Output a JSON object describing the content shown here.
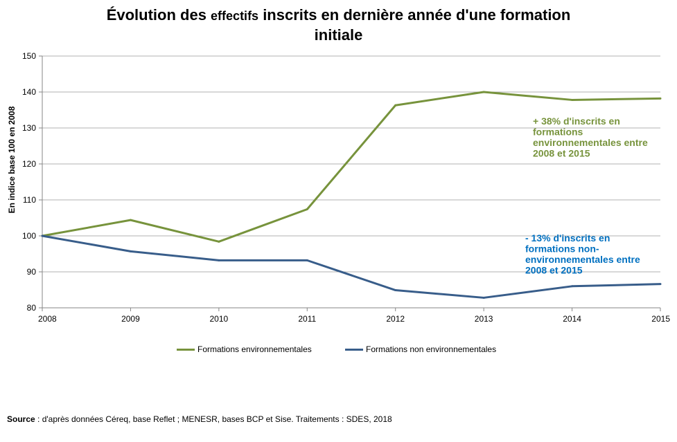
{
  "title": {
    "part1": "Évolution des ",
    "part2": "effectifs",
    "part3": " inscrits en dernière année d'une formation",
    "line2": "initiale"
  },
  "colors": {
    "environmental": "#77933C",
    "non_environmental": "#385D8A",
    "annotation_env": "#77933C",
    "annotation_non_env": "#0070C0",
    "grid": "#B0B0B0",
    "axis": "#868686"
  },
  "chart_data": {
    "type": "line",
    "x": [
      "2008",
      "2009",
      "2010",
      "2011",
      "2012",
      "2013",
      "2014",
      "2015"
    ],
    "series": [
      {
        "name": "Formations environnementales",
        "values": [
          100,
          104.4,
          98.4,
          107.4,
          136.3,
          140.0,
          137.8,
          138.2
        ]
      },
      {
        "name": "Formations non environnementales",
        "values": [
          100,
          95.7,
          93.2,
          93.2,
          84.9,
          82.8,
          86.0,
          86.6
        ]
      }
    ],
    "ylabel": "En indice base 100 en 2008",
    "ylim": [
      80,
      150
    ],
    "yticks": [
      "80",
      "90",
      "100",
      "110",
      "120",
      "130",
      "140",
      "150"
    ],
    "grid": true,
    "legend_position": "bottom",
    "annotations": [
      {
        "lines": [
          "+ 38% d'inscrits en",
          "formations",
          "environnementales entre",
          "2008 et 2015"
        ]
      },
      {
        "lines": [
          "- 13% d'inscrits en",
          "formations non-",
          "environnementales entre",
          "2008 et 2015"
        ]
      }
    ]
  },
  "source": {
    "label": "Source",
    "text": " : d'après données Céreq, base Reflet ; MENESR, bases BCP et Sise. Traitements : SDES, 2018"
  }
}
